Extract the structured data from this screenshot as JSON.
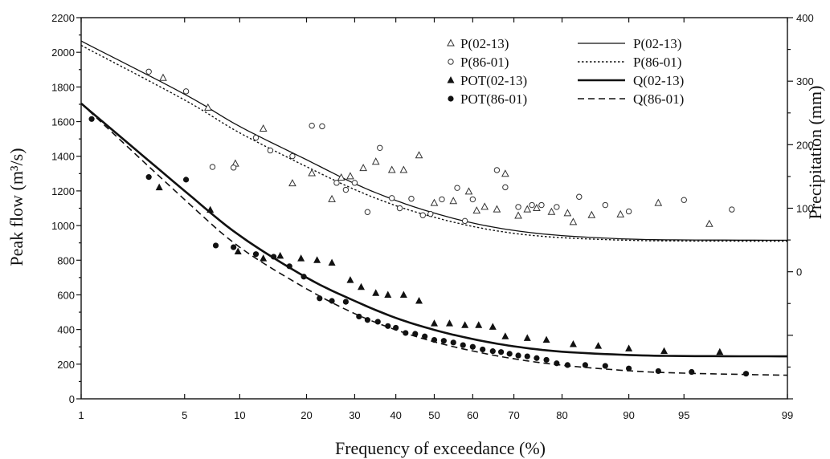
{
  "chart_data": {
    "type": "scatter",
    "xlabel": "Frequency of exceedance (%)",
    "ylabel_left": "Peak flow (m³/s)",
    "ylabel_right": "Precipitation (mm)",
    "x_scale": "normal-probability",
    "xlim": [
      1,
      99
    ],
    "ylim_left": [
      0,
      2200
    ],
    "ylim_right": [
      -200,
      400
    ],
    "x_ticks": [
      1,
      5,
      10,
      20,
      30,
      40,
      50,
      60,
      70,
      80,
      90,
      95,
      99
    ],
    "y_ticks_left": [
      0,
      200,
      400,
      600,
      800,
      1000,
      1200,
      1400,
      1600,
      1800,
      2000,
      2200
    ],
    "y_ticks_right": [
      0,
      100,
      200,
      300,
      400
    ],
    "grid": false,
    "legend_position": "top-right",
    "series": [
      {
        "name": "P(02-13)",
        "kind": "points",
        "marker": "open-triangle",
        "axis": "right",
        "points": [
          [
            3.7,
            305
          ],
          [
            6.8,
            258
          ],
          [
            9.5,
            170
          ],
          [
            13,
            225
          ],
          [
            17.5,
            139
          ],
          [
            21,
            155
          ],
          [
            25,
            114
          ],
          [
            27,
            148
          ],
          [
            29,
            150
          ],
          [
            32,
            163
          ],
          [
            35,
            173
          ],
          [
            39,
            160
          ],
          [
            42,
            160
          ],
          [
            46,
            183
          ],
          [
            50,
            108
          ],
          [
            55,
            111
          ],
          [
            59,
            126
          ],
          [
            61,
            96
          ],
          [
            63,
            102
          ],
          [
            66,
            98
          ],
          [
            68,
            154
          ],
          [
            71,
            88
          ],
          [
            73,
            98
          ],
          [
            75,
            100
          ],
          [
            78,
            94
          ],
          [
            81,
            92
          ],
          [
            82,
            78
          ],
          [
            85,
            89
          ],
          [
            89,
            90
          ],
          [
            93,
            108
          ],
          [
            96.5,
            75
          ]
        ]
      },
      {
        "name": "P(86-01)",
        "kind": "points",
        "marker": "open-circle",
        "axis": "right",
        "points": [
          [
            3,
            315
          ],
          [
            5.1,
            284
          ],
          [
            7.2,
            165
          ],
          [
            9.3,
            164
          ],
          [
            12,
            211
          ],
          [
            14,
            191
          ],
          [
            17.5,
            182
          ],
          [
            21,
            230
          ],
          [
            23,
            229
          ],
          [
            26,
            140
          ],
          [
            28,
            129
          ],
          [
            30,
            140
          ],
          [
            33,
            94
          ],
          [
            36,
            195
          ],
          [
            39,
            116
          ],
          [
            41,
            100
          ],
          [
            44,
            115
          ],
          [
            47,
            89
          ],
          [
            49,
            91
          ],
          [
            52,
            114
          ],
          [
            56,
            132
          ],
          [
            58,
            80
          ],
          [
            60,
            114
          ],
          [
            66,
            160
          ],
          [
            68,
            133
          ],
          [
            71,
            102
          ],
          [
            74,
            105
          ],
          [
            76,
            105
          ],
          [
            79,
            102
          ],
          [
            83,
            118
          ],
          [
            87,
            105
          ],
          [
            90,
            95
          ],
          [
            95,
            113
          ],
          [
            97.5,
            98
          ]
        ]
      },
      {
        "name": "POT(02-13)",
        "kind": "points",
        "marker": "filled-triangle",
        "axis": "left",
        "points": [
          [
            3.5,
            1220
          ],
          [
            7,
            1090
          ],
          [
            9.8,
            850
          ],
          [
            13,
            810
          ],
          [
            15.5,
            825
          ],
          [
            19,
            810
          ],
          [
            22,
            800
          ],
          [
            25,
            785
          ],
          [
            29,
            685
          ],
          [
            31.5,
            645
          ],
          [
            35,
            610
          ],
          [
            38,
            600
          ],
          [
            42,
            600
          ],
          [
            46,
            565
          ],
          [
            50,
            435
          ],
          [
            54,
            435
          ],
          [
            58,
            425
          ],
          [
            61.5,
            425
          ],
          [
            65,
            415
          ],
          [
            68,
            360
          ],
          [
            73,
            350
          ],
          [
            77,
            340
          ],
          [
            82,
            315
          ],
          [
            86,
            305
          ],
          [
            90,
            290
          ],
          [
            93.5,
            275
          ],
          [
            97,
            270
          ]
        ]
      },
      {
        "name": "POT(86-01)",
        "kind": "points",
        "marker": "filled-circle",
        "axis": "left",
        "points": [
          [
            1.2,
            1615
          ],
          [
            3,
            1280
          ],
          [
            5.1,
            1265
          ],
          [
            7.5,
            885
          ],
          [
            9.3,
            875
          ],
          [
            12,
            835
          ],
          [
            14.5,
            820
          ],
          [
            17,
            765
          ],
          [
            19.5,
            705
          ],
          [
            22.5,
            580
          ],
          [
            25,
            565
          ],
          [
            28,
            560
          ],
          [
            31,
            475
          ],
          [
            33,
            455
          ],
          [
            35.5,
            445
          ],
          [
            38,
            420
          ],
          [
            40,
            410
          ],
          [
            42.5,
            380
          ],
          [
            45,
            375
          ],
          [
            47.5,
            360
          ],
          [
            50,
            340
          ],
          [
            52.5,
            335
          ],
          [
            55,
            325
          ],
          [
            57.5,
            310
          ],
          [
            60,
            300
          ],
          [
            62.5,
            285
          ],
          [
            65,
            275
          ],
          [
            67,
            270
          ],
          [
            69,
            260
          ],
          [
            71,
            250
          ],
          [
            73,
            245
          ],
          [
            75,
            235
          ],
          [
            77,
            225
          ],
          [
            79,
            205
          ],
          [
            81,
            195
          ],
          [
            84,
            195
          ],
          [
            87,
            190
          ],
          [
            90,
            175
          ],
          [
            93,
            160
          ],
          [
            95.5,
            155
          ],
          [
            98,
            145
          ]
        ]
      },
      {
        "name": "P(02-13)",
        "kind": "line",
        "style": "thin-solid",
        "axis": "left",
        "points": [
          [
            1,
            2065
          ],
          [
            5,
            1758
          ],
          [
            10,
            1572
          ],
          [
            20,
            1380
          ],
          [
            30,
            1242
          ],
          [
            40,
            1145
          ],
          [
            50,
            1072
          ],
          [
            60,
            1015
          ],
          [
            70,
            972
          ],
          [
            80,
            942
          ],
          [
            90,
            922
          ],
          [
            95,
            917
          ],
          [
            99,
            915
          ]
        ]
      },
      {
        "name": "P(86-01)",
        "kind": "line",
        "style": "dotted",
        "axis": "left",
        "points": [
          [
            1,
            2040
          ],
          [
            5,
            1725
          ],
          [
            10,
            1535
          ],
          [
            20,
            1340
          ],
          [
            30,
            1208
          ],
          [
            40,
            1115
          ],
          [
            50,
            1048
          ],
          [
            60,
            995
          ],
          [
            70,
            955
          ],
          [
            80,
            930
          ],
          [
            90,
            915
          ],
          [
            95,
            911
          ],
          [
            99,
            910
          ]
        ]
      },
      {
        "name": "Q(02-13)",
        "kind": "line",
        "style": "thick-solid",
        "axis": "left",
        "points": [
          [
            1,
            1705
          ],
          [
            5,
            1200
          ],
          [
            10,
            942
          ],
          [
            20,
            700
          ],
          [
            30,
            565
          ],
          [
            40,
            467
          ],
          [
            50,
            398
          ],
          [
            60,
            345
          ],
          [
            70,
            303
          ],
          [
            80,
            272
          ],
          [
            90,
            253
          ],
          [
            95,
            247
          ],
          [
            99,
            245
          ]
        ]
      },
      {
        "name": "Q(86-01)",
        "kind": "line",
        "style": "dashed",
        "axis": "left",
        "points": [
          [
            1,
            1705
          ],
          [
            5,
            1150
          ],
          [
            10,
            875
          ],
          [
            20,
            635
          ],
          [
            30,
            492
          ],
          [
            40,
            398
          ],
          [
            50,
            329
          ],
          [
            60,
            276
          ],
          [
            70,
            231
          ],
          [
            80,
            194
          ],
          [
            90,
            162
          ],
          [
            95,
            148
          ],
          [
            99,
            136
          ]
        ]
      }
    ]
  }
}
